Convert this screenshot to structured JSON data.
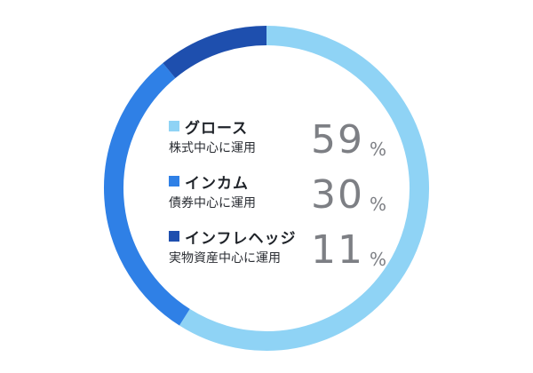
{
  "chart_data": {
    "type": "pie",
    "style": "donut",
    "title": "",
    "categories": [
      "グロース",
      "インカム",
      "インフレヘッジ"
    ],
    "descriptions": [
      "株式中心に運用",
      "債券中心に運用",
      "実物資産中心に運用"
    ],
    "values": [
      59,
      30,
      11
    ],
    "value_labels": [
      "59",
      "30",
      "11"
    ],
    "unit": "%",
    "colors": [
      "#8fd3f5",
      "#2f80e6",
      "#1e4fae"
    ],
    "start": "top, clockwise"
  }
}
